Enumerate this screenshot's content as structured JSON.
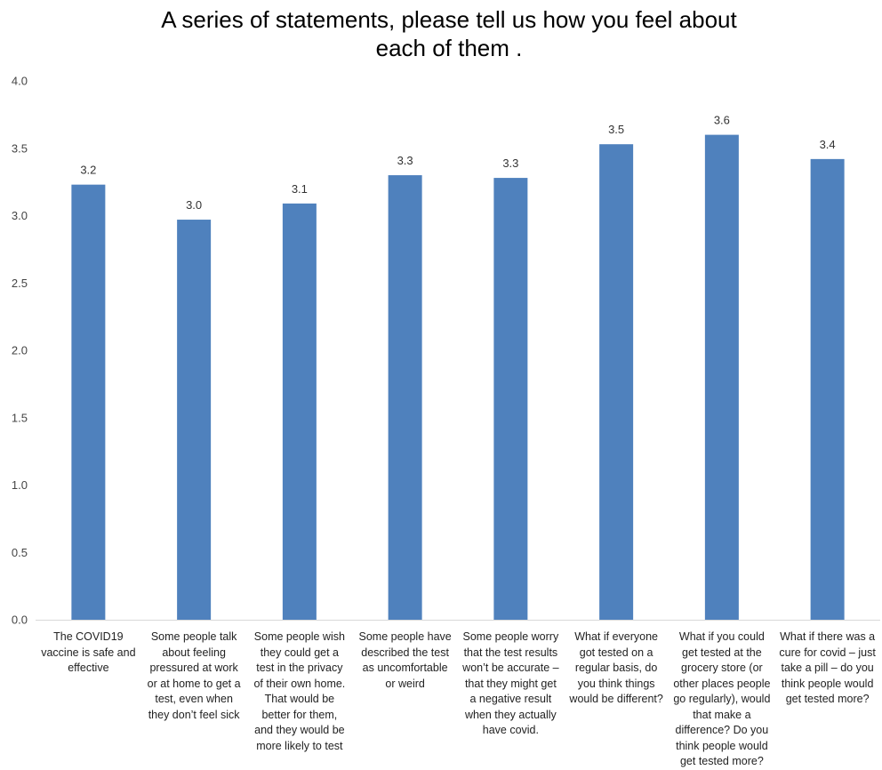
{
  "chart_data": {
    "type": "bar",
    "title_lines": [
      "A series of statements, please tell us how you feel about",
      "each of them ."
    ],
    "xlabel": "",
    "ylabel": "",
    "ylim": [
      0,
      4
    ],
    "y_ticks": [
      "0.0",
      "0.5",
      "1.0",
      "1.5",
      "2.0",
      "2.5",
      "3.0",
      "3.5",
      "4.0"
    ],
    "grid": false,
    "legend": "none",
    "bar_color": "#4f81bd",
    "categories": [
      [
        "The COVID19",
        "vaccine is safe and",
        "effective"
      ],
      [
        "Some people talk",
        "about feeling",
        "pressured at work",
        "or at home to get a",
        "test, even when",
        "they don’t feel sick"
      ],
      [
        "Some people wish",
        "they could get a",
        "test in the privacy",
        "of their own home.",
        "That would be",
        "better for them,",
        "and they would be",
        "more likely to test"
      ],
      [
        "Some people have",
        "described the test",
        "as uncomfortable",
        "or weird"
      ],
      [
        "Some people worry",
        "that the test results",
        "won’t be accurate –",
        "that they might get",
        "a negative result",
        "when they actually",
        "have covid."
      ],
      [
        "What if everyone",
        "got tested on a",
        "regular basis, do",
        "you think things",
        "would be different?"
      ],
      [
        "What if you could",
        "get tested at the",
        "grocery store (or",
        "other places people",
        "go regularly), would",
        "that make a",
        "difference? Do you",
        "think people would",
        "get tested more?"
      ],
      [
        "What if there was a",
        "cure for covid – just",
        "take a pill – do you",
        "think people would",
        "get tested more?"
      ]
    ],
    "values": [
      3.23,
      2.97,
      3.09,
      3.3,
      3.28,
      3.53,
      3.6,
      3.42
    ],
    "data_labels": [
      "3.2",
      "3.0",
      "3.1",
      "3.3",
      "3.3",
      "3.5",
      "3.6",
      "3.4"
    ]
  }
}
